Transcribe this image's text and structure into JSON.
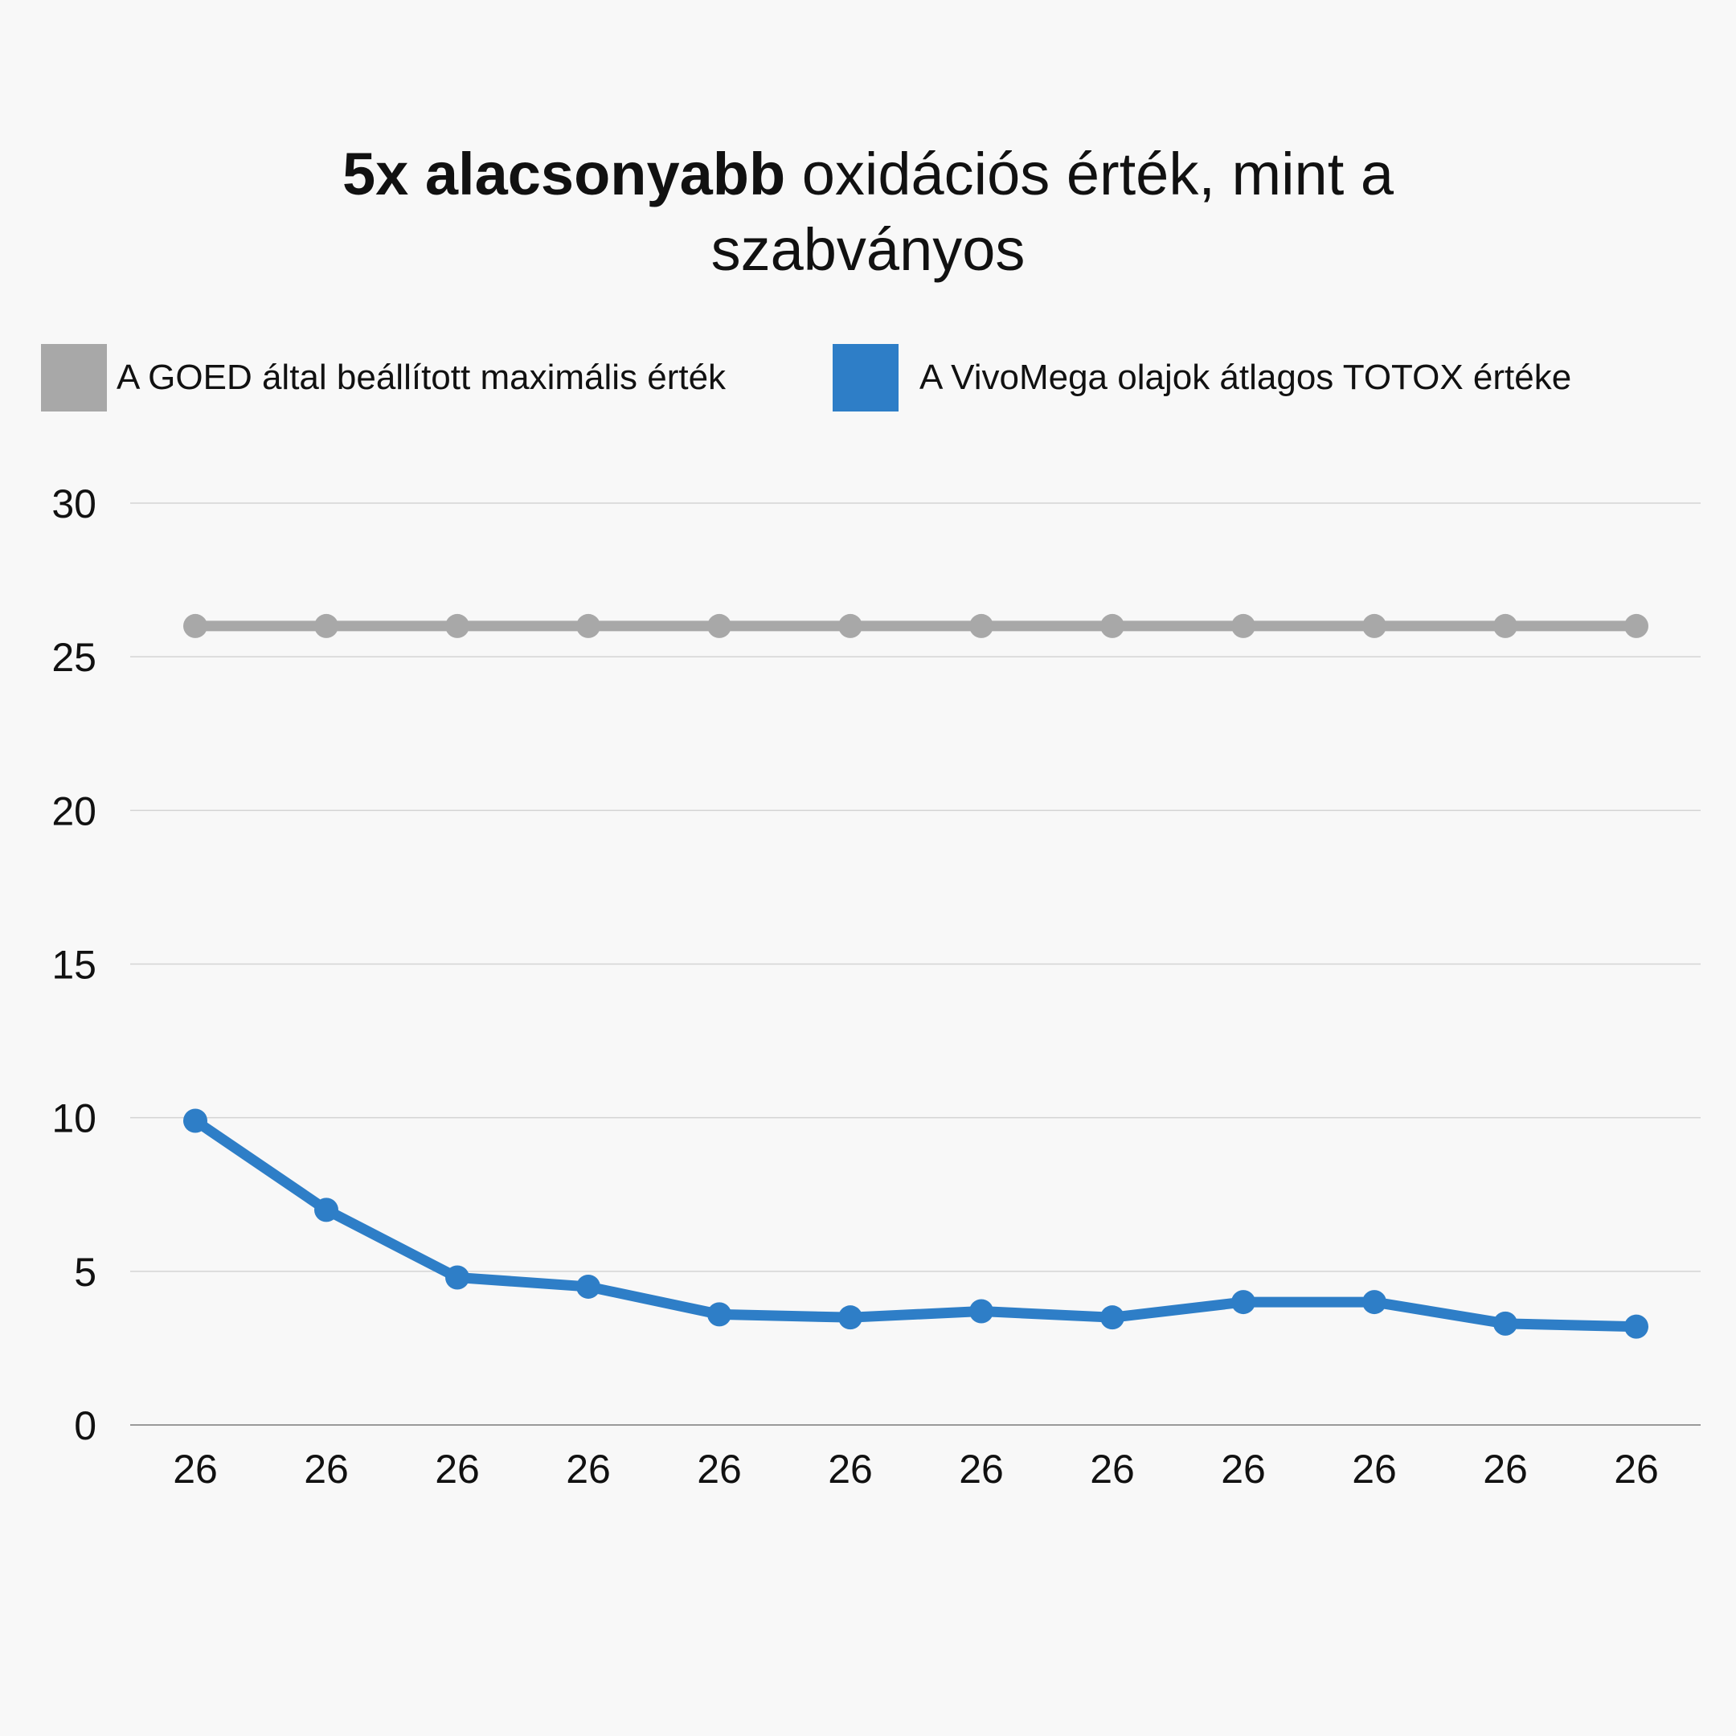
{
  "title": {
    "bold": "5x alacsonyabb",
    "rest_line1": " oxidációs érték, mint a",
    "line2": "szabványos"
  },
  "legend": [
    {
      "label": "A GOED által beállított maximális érték",
      "color": "#a8a8a8"
    },
    {
      "label": "A VivoMega olajok átlagos TOTOX értéke",
      "color": "#2e7ec7"
    }
  ],
  "chart_data": {
    "type": "line",
    "categories": [
      "26",
      "26",
      "26",
      "26",
      "26",
      "26",
      "26",
      "26",
      "26",
      "26",
      "26",
      "26"
    ],
    "series": [
      {
        "name": "A GOED által beállított maximális érték",
        "color": "#a8a8a8",
        "values": [
          26,
          26,
          26,
          26,
          26,
          26,
          26,
          26,
          26,
          26,
          26,
          26
        ]
      },
      {
        "name": "A VivoMega olajok átlagos TOTOX értéke",
        "color": "#2e7ec7",
        "values": [
          9.9,
          7.0,
          4.8,
          4.5,
          3.6,
          3.5,
          3.7,
          3.5,
          4.0,
          4.0,
          3.3,
          3.2
        ]
      }
    ],
    "ylim": [
      0,
      30
    ],
    "yticks": [
      0,
      5,
      10,
      15,
      20,
      25,
      30
    ],
    "grid": true,
    "legend_position": "top"
  }
}
